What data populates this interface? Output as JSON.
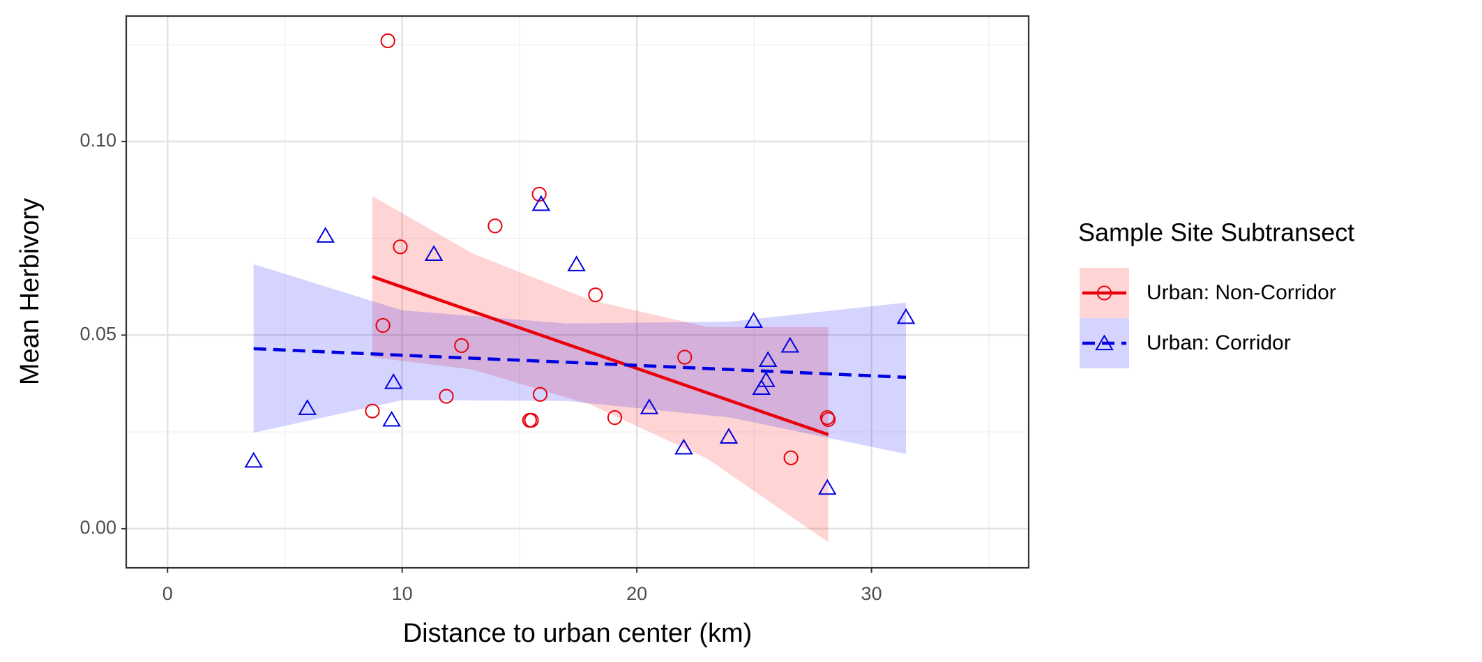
{
  "chart_data": {
    "type": "scatter",
    "xlabel": "Distance to urban center (km)",
    "ylabel": "Mean Herbivory",
    "legend_title": "Sample Site Subtransect",
    "xlim": [
      -1.76,
      36.7
    ],
    "ylim": [
      -0.0101,
      0.1324
    ],
    "xticks": [
      0,
      10,
      20,
      30
    ],
    "xminor": [
      5,
      15,
      25,
      35
    ],
    "yticks": [
      {
        "value": 0,
        "label": "0.00"
      },
      0.05,
      {
        "value": 0.1,
        "label": "0.10"
      }
    ],
    "yminor": [
      0.025,
      0.075,
      0.125
    ],
    "grid": true,
    "legend": "right",
    "series": [
      {
        "name": "Urban: Non-Corridor",
        "color": "#e8000b",
        "band_color": "#ff0000",
        "shape": "circle",
        "linestyle": "solid",
        "x": [
          9.39,
          15.84,
          13.96,
          9.92,
          18.24,
          9.18,
          12.53,
          22.04,
          11.88,
          15.88,
          8.73,
          15.43,
          15.51,
          19.06,
          28.12,
          28.16,
          26.57
        ],
        "values": [
          0.126,
          0.0864,
          0.0782,
          0.0728,
          0.0604,
          0.0525,
          0.0473,
          0.0443,
          0.0342,
          0.0347,
          0.0304,
          0.028,
          0.028,
          0.0287,
          0.0287,
          0.0282,
          0.0183
        ],
        "fit": {
          "x": [
            8.73,
            13,
            18,
            23,
            28.16
          ],
          "values": [
            0.0651,
            0.0561,
            0.0456,
            0.0351,
            0.0243
          ],
          "upper": [
            0.0859,
            0.0711,
            0.0591,
            0.0521,
            0.0521
          ],
          "lower": [
            0.0443,
            0.0411,
            0.0321,
            0.0181,
            -0.0035
          ]
        }
      },
      {
        "name": "Urban: Corridor",
        "color": "#0000e0",
        "band_color": "#0000ff",
        "shape": "triangle",
        "linestyle": "dashed",
        "x": [
          6.73,
          15.92,
          11.35,
          17.43,
          24.98,
          31.47,
          26.53,
          25.59,
          25.51,
          25.31,
          9.63,
          5.96,
          9.55,
          20.53,
          23.92,
          22.0,
          3.67,
          28.12
        ],
        "values": [
          0.0757,
          0.0839,
          0.071,
          0.0683,
          0.0537,
          0.0547,
          0.0473,
          0.0436,
          0.0384,
          0.0364,
          0.0379,
          0.0312,
          0.0282,
          0.0314,
          0.0238,
          0.021,
          0.0176,
          0.0106
        ],
        "fit": {
          "x": [
            3.67,
            10,
            17,
            24,
            31.47
          ],
          "values": [
            0.0465,
            0.0448,
            0.043,
            0.0411,
            0.0391
          ],
          "upper": [
            0.0683,
            0.0564,
            0.053,
            0.0535,
            0.0584
          ],
          "lower": [
            0.0248,
            0.0332,
            0.033,
            0.0287,
            0.0193
          ]
        }
      }
    ]
  }
}
